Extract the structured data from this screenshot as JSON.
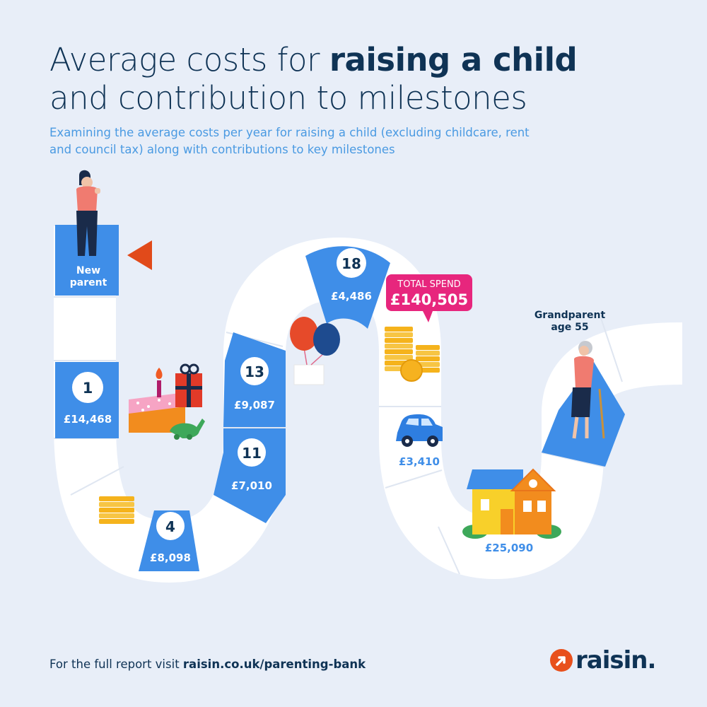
{
  "title": {
    "line1_prefix": "Average costs for ",
    "line1_bold": "raising a child",
    "line2": "and contribution to milestones"
  },
  "subtitle": "Examining the average costs per year for raising a child (excluding childcare, rent and council tax) along with contributions to key milestones",
  "board": {
    "start_line1": "New",
    "start_line2": "parent",
    "end_line1": "Grandparent",
    "end_line2": "age 55",
    "milestones": [
      {
        "age": "1",
        "cost": "£14,468"
      },
      {
        "age": "4",
        "cost": "£8,098"
      },
      {
        "age": "11",
        "cost": "£7,010"
      },
      {
        "age": "13",
        "cost": "£9,087"
      },
      {
        "age": "18",
        "cost": "£4,486"
      }
    ],
    "car_cost": "£3,410",
    "house_cost": "£25,090",
    "total_label": "TOTAL SPEND",
    "total_value": "£140,505"
  },
  "footer": {
    "prefix": "For the full report visit ",
    "link": "raisin.co.uk/parenting-bank"
  },
  "logo_text": "raisin.",
  "colors": {
    "navy": "#0f3355",
    "blue": "#3f8ee8",
    "light_blue": "#4a9ae2",
    "path": "#ffffff",
    "background": "#e8eef8",
    "accent_pink": "#e7267d",
    "accent_orange": "#e8501c"
  },
  "icons": [
    "parent-figure-icon",
    "flag-icon",
    "birthday-cake-icon",
    "gift-icon",
    "dinosaur-toy-icon",
    "coin-stack-icon",
    "balloons-icon",
    "car-icon",
    "house-icon",
    "grandparent-figure-icon"
  ]
}
